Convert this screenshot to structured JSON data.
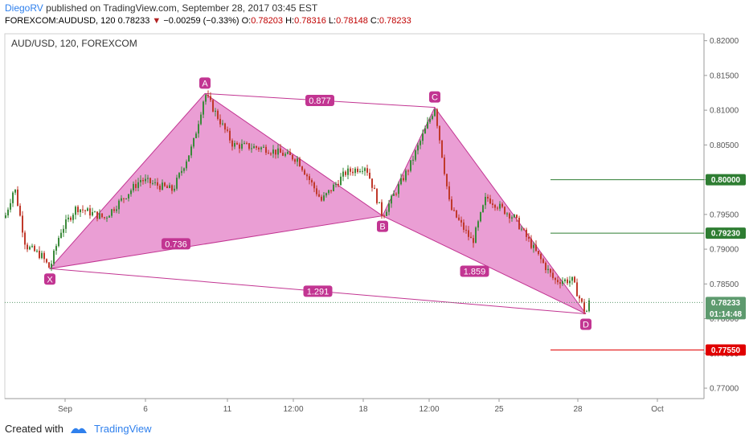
{
  "header": {
    "author": "DiegoRV",
    "published": "published on TradingView.com, September 28, 2017 03:45 EST"
  },
  "ohlc": {
    "symbol": "FOREXCOM:AUDUSD, 120",
    "last": "0.78233",
    "change": "−0.00259 (−0.33%)",
    "open_label": "O:",
    "open": "0.78203",
    "high_label": "H:",
    "high": "0.78316",
    "low_label": "L:",
    "low": "0.78148",
    "close_label": "C:",
    "close": "0.78233"
  },
  "symbol_label": "AUD/USD, 120, FOREXCOM",
  "footer": {
    "created_with": "Created with",
    "brand": "TradingView"
  },
  "colors": {
    "bull": "#3a8a3a",
    "bear": "#c0392b",
    "pattern_fill": "#d94fb0",
    "pattern_line": "#c23592",
    "green_line": "#2e7d32",
    "red_line": "#e00000",
    "current_price": "#5d9a6e"
  },
  "chart_data": {
    "type": "candlestick",
    "title": "AUD/USD, 120, FOREXCOM",
    "x_ticks": [
      "Sep",
      "6",
      "11",
      "12:00",
      "18",
      "12:00",
      "25",
      "28",
      "Oct"
    ],
    "y_ticks": [
      "0.82000",
      "0.81500",
      "0.81000",
      "0.80500",
      "0.80000",
      "0.79500",
      "0.79000",
      "0.78500",
      "0.78000",
      "0.77500",
      "0.77000"
    ],
    "ylim": [
      0.7685,
      0.821
    ],
    "harmonic_pattern": {
      "points": [
        {
          "label": "X",
          "price": 0.7872
        },
        {
          "label": "A",
          "price": 0.8124
        },
        {
          "label": "B",
          "price": 0.7948
        },
        {
          "label": "C",
          "price": 0.8104
        },
        {
          "label": "D",
          "price": 0.7807
        }
      ],
      "ratios": {
        "XB": "0.736",
        "AC": "0.877",
        "BD": "1.859",
        "XD": "1.291"
      }
    },
    "levels": [
      {
        "price": "0.80000",
        "kind": "target"
      },
      {
        "price": "0.79230",
        "kind": "target"
      },
      {
        "price": "0.77550",
        "kind": "stop"
      }
    ],
    "current_price": "0.78233",
    "countdown": "01:14:48"
  }
}
